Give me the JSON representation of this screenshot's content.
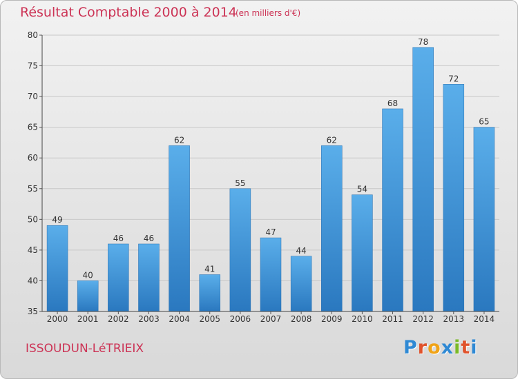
{
  "chart_data": {
    "type": "bar",
    "title": "Résultat Comptable 2000 à 2014",
    "subtitle": "(en milliers d'€)",
    "categories": [
      "2000",
      "2001",
      "2002",
      "2003",
      "2004",
      "2005",
      "2006",
      "2007",
      "2008",
      "2009",
      "2010",
      "2011",
      "2012",
      "2013",
      "2014"
    ],
    "values": [
      49,
      40,
      46,
      46,
      62,
      41,
      55,
      47,
      44,
      62,
      54,
      68,
      78,
      72,
      65
    ],
    "ylim": [
      35,
      80
    ],
    "yticks": [
      "35",
      "40",
      "45",
      "50",
      "55",
      "60",
      "65",
      "70",
      "75",
      "80"
    ],
    "xlabel": "",
    "ylabel": "",
    "grid": true,
    "bar_color": "#3a8fd6"
  },
  "footer": {
    "commune": "ISSOUDUN-LéTRIEIX",
    "logo_letters": [
      "P",
      "r",
      "o",
      "x",
      "i",
      "t",
      "i"
    ],
    "logo_colors": [
      "#2f89d4",
      "#e0532c",
      "#f0a317",
      "#2f89d4",
      "#7ab928",
      "#e0532c",
      "#2f89d4"
    ]
  }
}
